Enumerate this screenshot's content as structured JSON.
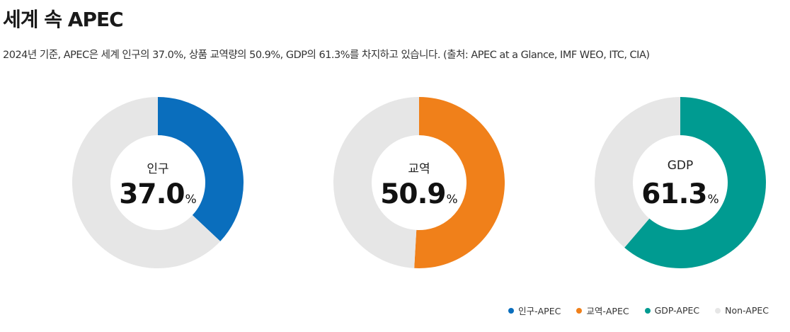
{
  "header": {
    "title": "세계 속 APEC",
    "subtitle": "2024년 기준, APEC은 세계 인구의 37.0%, 상품 교역량의 50.9%, GDP의 61.3%를 차지하고 있습니다. (출처: APEC at a Glance, IMF WEO, ITC, CIA)"
  },
  "chart_data": [
    {
      "type": "pie",
      "label": "인구",
      "value": 37.0,
      "value_text": "37.0",
      "unit": "%",
      "slices": [
        {
          "name": "인구-APEC",
          "value": 37.0,
          "color": "#0A6EBD"
        },
        {
          "name": "Non-APEC",
          "value": 63.0,
          "color": "#E6E6E6"
        }
      ]
    },
    {
      "type": "pie",
      "label": "교역",
      "value": 50.9,
      "value_text": "50.9",
      "unit": "%",
      "slices": [
        {
          "name": "교역-APEC",
          "value": 50.9,
          "color": "#F0801A"
        },
        {
          "name": "Non-APEC",
          "value": 49.1,
          "color": "#E6E6E6"
        }
      ]
    },
    {
      "type": "pie",
      "label": "GDP",
      "value": 61.3,
      "value_text": "61.3",
      "unit": "%",
      "slices": [
        {
          "name": "GDP-APEC",
          "value": 61.3,
          "color": "#009B91"
        },
        {
          "name": "Non-APEC",
          "value": 38.7,
          "color": "#E6E6E6"
        }
      ]
    }
  ],
  "legend": [
    {
      "name": "인구-APEC",
      "color": "#0A6EBD"
    },
    {
      "name": "교역-APEC",
      "color": "#F0801A"
    },
    {
      "name": "GDP-APEC",
      "color": "#009B91"
    },
    {
      "name": "Non-APEC",
      "color": "#E6E6E6"
    }
  ]
}
